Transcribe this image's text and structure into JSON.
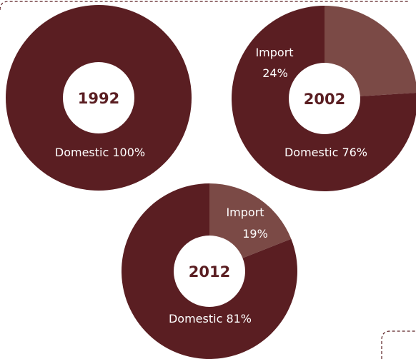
{
  "colors": {
    "domestic": "#5a1e22",
    "import": "#7b4a46",
    "hole": "#ffffff",
    "text_light": "#ffffff",
    "text_dark": "#5a1e22"
  },
  "chart_data": [
    {
      "type": "pie",
      "style": "donut",
      "title": "1992",
      "slices": [
        {
          "category": "Domestic",
          "value": 100,
          "label": "Domestic 100%"
        }
      ]
    },
    {
      "type": "pie",
      "style": "donut",
      "title": "2002",
      "slices": [
        {
          "category": "Import",
          "value": 24,
          "label_line1": "Import",
          "label_line2": "24%"
        },
        {
          "category": "Domestic",
          "value": 76,
          "label": "Domestic 76%"
        }
      ]
    },
    {
      "type": "pie",
      "style": "donut",
      "title": "2012",
      "slices": [
        {
          "category": "Import",
          "value": 19,
          "label_line1": "Import",
          "label_line2": "19%"
        },
        {
          "category": "Domestic",
          "value": 81,
          "label": "Domestic 81%"
        }
      ]
    }
  ]
}
